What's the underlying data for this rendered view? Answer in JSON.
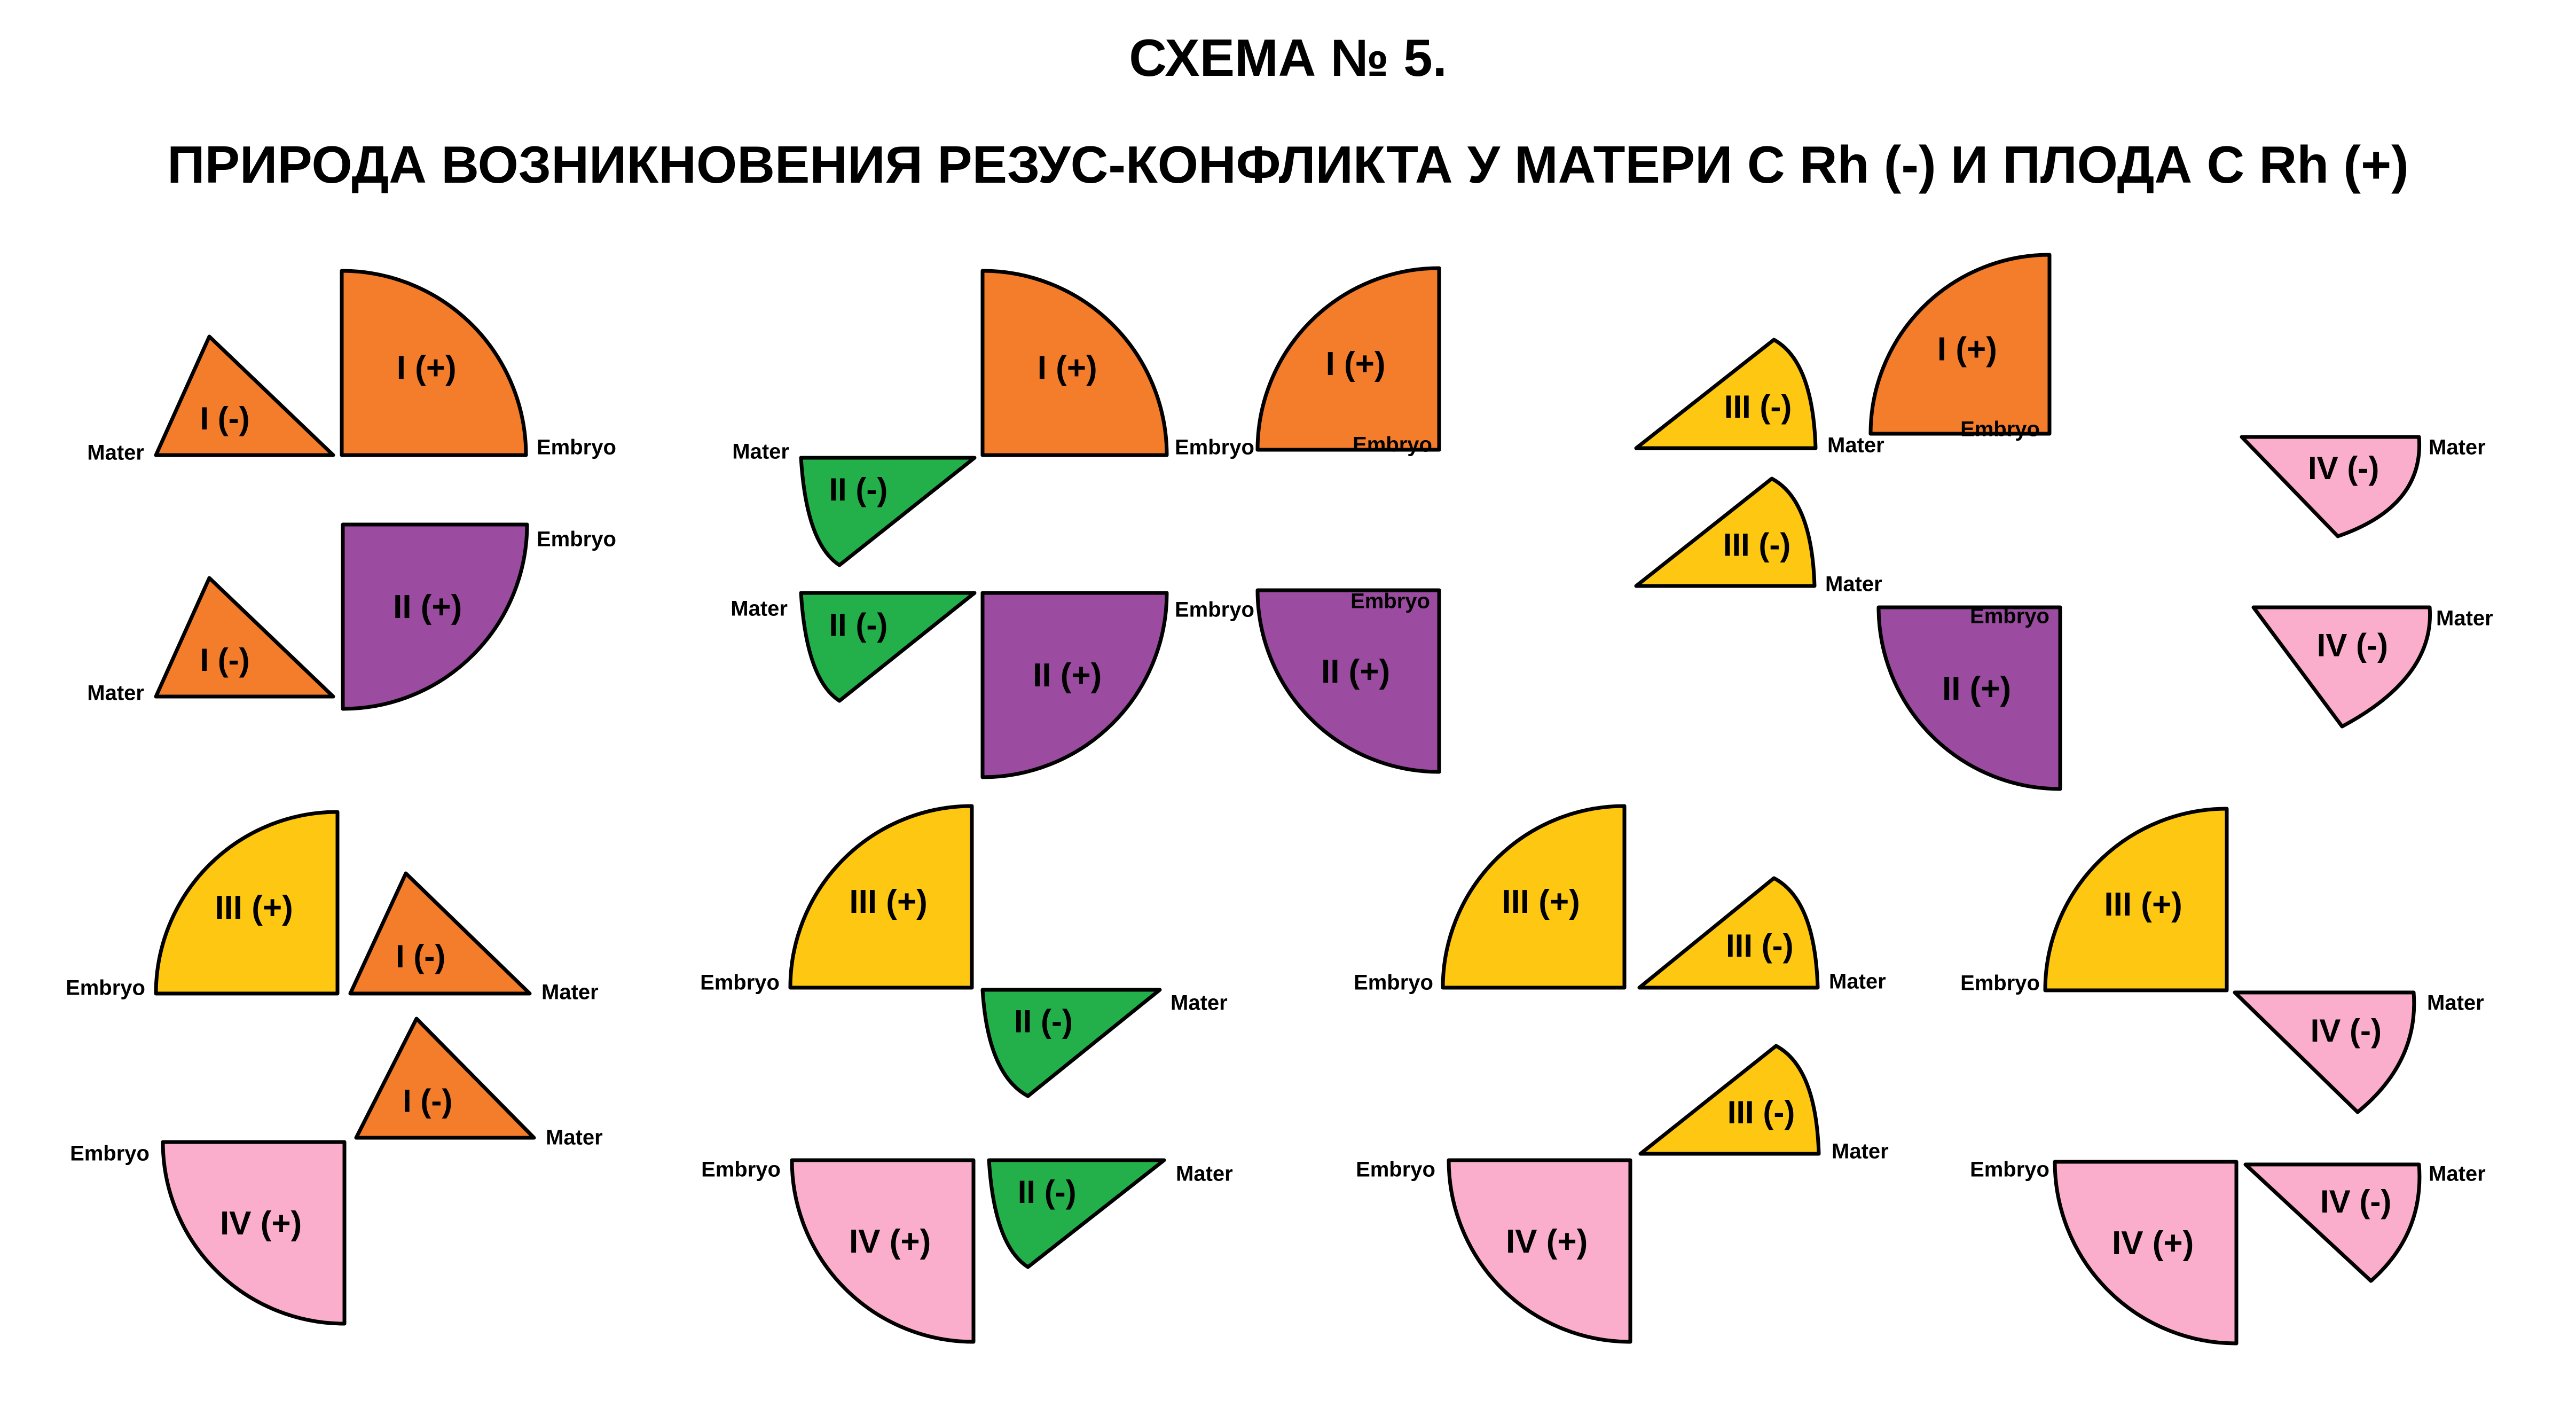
{
  "title": "СХЕМА № 5.",
  "subtitle": "ПРИРОДА ВОЗНИКНОВЕНИЯ РЕЗУС-КОНФЛИКТА У МАТЕРИ С Rh (-) И ПЛОДА С Rh (+)",
  "colors": {
    "I": "#F47D2C",
    "II": "#23B04B",
    "III": "#FDC712",
    "IV": "#FBAECB",
    "II_plus": "#9B4BA0",
    "outline": "#000000"
  },
  "roles": {
    "mother": "Mater",
    "embryo": "Embryo"
  },
  "cells": [
    {
      "mother": {
        "group": "I",
        "sign": "(-)",
        "label": "I (-)"
      },
      "embryo": {
        "group": "I",
        "sign": "(+)",
        "label": "I (+)"
      }
    },
    {
      "mother": {
        "group": "I",
        "sign": "(-)",
        "label": "I (-)"
      },
      "embryo": {
        "group": "II",
        "sign": "(+)",
        "label": "II (+)"
      }
    },
    {
      "mother": {
        "group": "II",
        "sign": "(-)",
        "label": "II (-)"
      },
      "embryo": {
        "group": "I",
        "sign": "(+)",
        "label": "I (+)"
      }
    },
    {
      "mother": {
        "group": "II",
        "sign": "(-)",
        "label": "II (-)"
      },
      "embryo": {
        "group": "II",
        "sign": "(+)",
        "label": "II (+)"
      }
    },
    {
      "mother": {
        "group": "III",
        "sign": "(-)",
        "label": "III (-)"
      },
      "embryo": {
        "group": "I",
        "sign": "(+)",
        "label": "I (+)"
      }
    },
    {
      "mother": {
        "group": "III",
        "sign": "(-)",
        "label": "III (-)"
      },
      "embryo": {
        "group": "II",
        "sign": "(+)",
        "label": "II (+)"
      }
    },
    {
      "mother": {
        "group": "IV",
        "sign": "(-)",
        "label": "IV (-)"
      },
      "embryo": {
        "group": "I",
        "sign": "(+)",
        "label": "I (+)"
      }
    },
    {
      "mother": {
        "group": "IV",
        "sign": "(-)",
        "label": "IV (-)"
      },
      "embryo": {
        "group": "II",
        "sign": "(+)",
        "label": "II (+)"
      }
    },
    {
      "mother": {
        "group": "I",
        "sign": "(-)",
        "label": "I (-)"
      },
      "embryo": {
        "group": "III",
        "sign": "(+)",
        "label": "III (+)"
      }
    },
    {
      "mother": {
        "group": "I",
        "sign": "(-)",
        "label": "I (-)"
      },
      "embryo": {
        "group": "IV",
        "sign": "(+)",
        "label": "IV (+)"
      }
    },
    {
      "mother": {
        "group": "II",
        "sign": "(-)",
        "label": "II (-)"
      },
      "embryo": {
        "group": "III",
        "sign": "(+)",
        "label": "III (+)"
      }
    },
    {
      "mother": {
        "group": "II",
        "sign": "(-)",
        "label": "II (-)"
      },
      "embryo": {
        "group": "IV",
        "sign": "(+)",
        "label": "IV (+)"
      }
    },
    {
      "mother": {
        "group": "III",
        "sign": "(-)",
        "label": "III (-)"
      },
      "embryo": {
        "group": "III",
        "sign": "(+)",
        "label": "III (+)"
      }
    },
    {
      "mother": {
        "group": "III",
        "sign": "(-)",
        "label": "III (-)"
      },
      "embryo": {
        "group": "IV",
        "sign": "(+)",
        "label": "IV (+)"
      }
    },
    {
      "mother": {
        "group": "IV",
        "sign": "(-)",
        "label": "IV (-)"
      },
      "embryo": {
        "group": "III",
        "sign": "(+)",
        "label": "III (+)"
      }
    },
    {
      "mother": {
        "group": "IV",
        "sign": "(-)",
        "label": "IV (-)"
      },
      "embryo": {
        "group": "IV",
        "sign": "(+)",
        "label": "IV (+)"
      }
    }
  ]
}
